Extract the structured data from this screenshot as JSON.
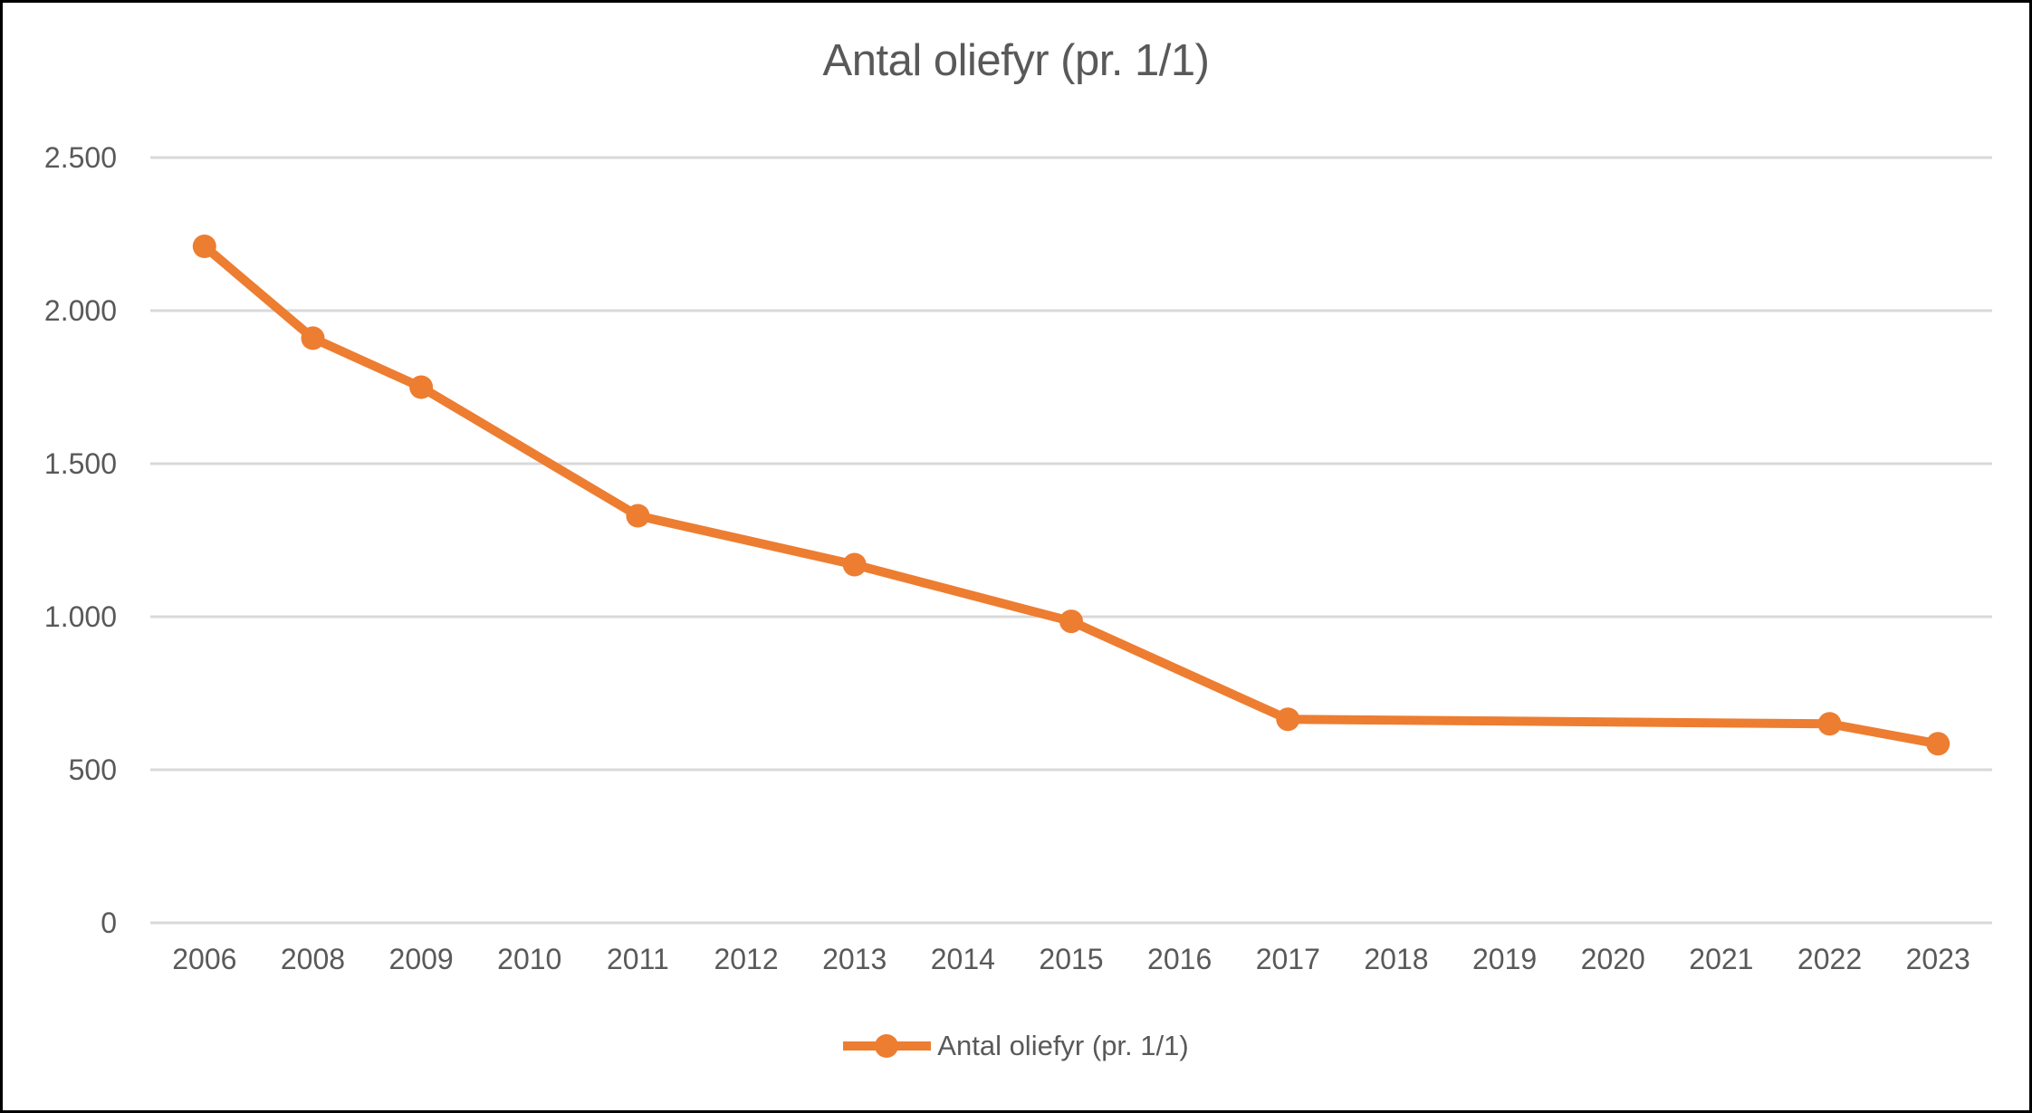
{
  "chart_data": {
    "type": "line",
    "title": "Antal oliefyr (pr. 1/1)",
    "legend_label": "Antal oliefyr (pr. 1/1)",
    "legend_position": "bottom",
    "grid": true,
    "categories": [
      "2006",
      "2008",
      "2009",
      "2010",
      "2011",
      "2012",
      "2013",
      "2014",
      "2015",
      "2016",
      "2017",
      "2018",
      "2019",
      "2020",
      "2021",
      "2022",
      "2023"
    ],
    "series": [
      {
        "name": "Antal oliefyr (pr. 1/1)",
        "color": "#ED7D31",
        "values": [
          2210,
          1910,
          1750,
          null,
          1330,
          null,
          1170,
          null,
          985,
          null,
          665,
          null,
          null,
          null,
          null,
          650,
          585
        ]
      }
    ],
    "ylim": [
      0,
      2500
    ],
    "y_tick_interval": 500,
    "y_tick_labels": [
      "0",
      "500",
      "1.000",
      "1.500",
      "2.000",
      "2.500"
    ],
    "xlabel": "",
    "ylabel": ""
  },
  "colors": {
    "series": "#ED7D31",
    "gridline": "#D9D9D9",
    "axis_line": "#D9D9D9",
    "text": "#595959",
    "border": "#000000",
    "background": "#FFFFFF"
  }
}
